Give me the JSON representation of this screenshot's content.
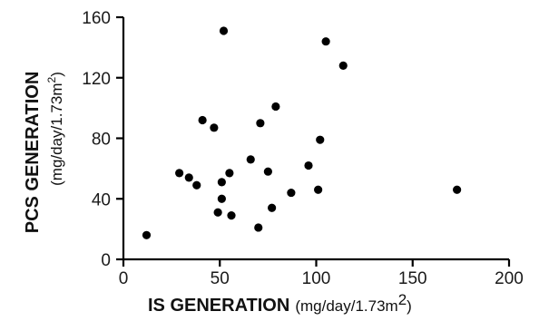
{
  "chart_data": {
    "type": "scatter",
    "title": "",
    "xlabel": "IS GENERATION",
    "xlabel_unit": "(mg/day/1.73m",
    "xlabel_unit_sup": "2",
    "xlabel_unit_close": ")",
    "ylabel": "PCS GENERATION",
    "ylabel_unit": "(mg/day/1.73m",
    "ylabel_unit_sup": "2",
    "ylabel_unit_close": ")",
    "xlim": [
      0,
      200
    ],
    "ylim": [
      0,
      160
    ],
    "xticks": [
      0,
      50,
      100,
      150,
      200
    ],
    "yticks": [
      0,
      40,
      80,
      120,
      160
    ],
    "grid": false,
    "color": "#000000",
    "points": [
      {
        "x": 12,
        "y": 16
      },
      {
        "x": 29,
        "y": 57
      },
      {
        "x": 34,
        "y": 54
      },
      {
        "x": 38,
        "y": 49
      },
      {
        "x": 41,
        "y": 92
      },
      {
        "x": 47,
        "y": 87
      },
      {
        "x": 49,
        "y": 31
      },
      {
        "x": 51,
        "y": 51
      },
      {
        "x": 51,
        "y": 40
      },
      {
        "x": 52,
        "y": 151
      },
      {
        "x": 55,
        "y": 57
      },
      {
        "x": 56,
        "y": 29
      },
      {
        "x": 66,
        "y": 66
      },
      {
        "x": 70,
        "y": 21
      },
      {
        "x": 71,
        "y": 90
      },
      {
        "x": 75,
        "y": 58
      },
      {
        "x": 77,
        "y": 34
      },
      {
        "x": 79,
        "y": 101
      },
      {
        "x": 87,
        "y": 44
      },
      {
        "x": 96,
        "y": 62
      },
      {
        "x": 101,
        "y": 46
      },
      {
        "x": 102,
        "y": 79
      },
      {
        "x": 105,
        "y": 144
      },
      {
        "x": 114,
        "y": 128
      },
      {
        "x": 173,
        "y": 46
      }
    ]
  }
}
